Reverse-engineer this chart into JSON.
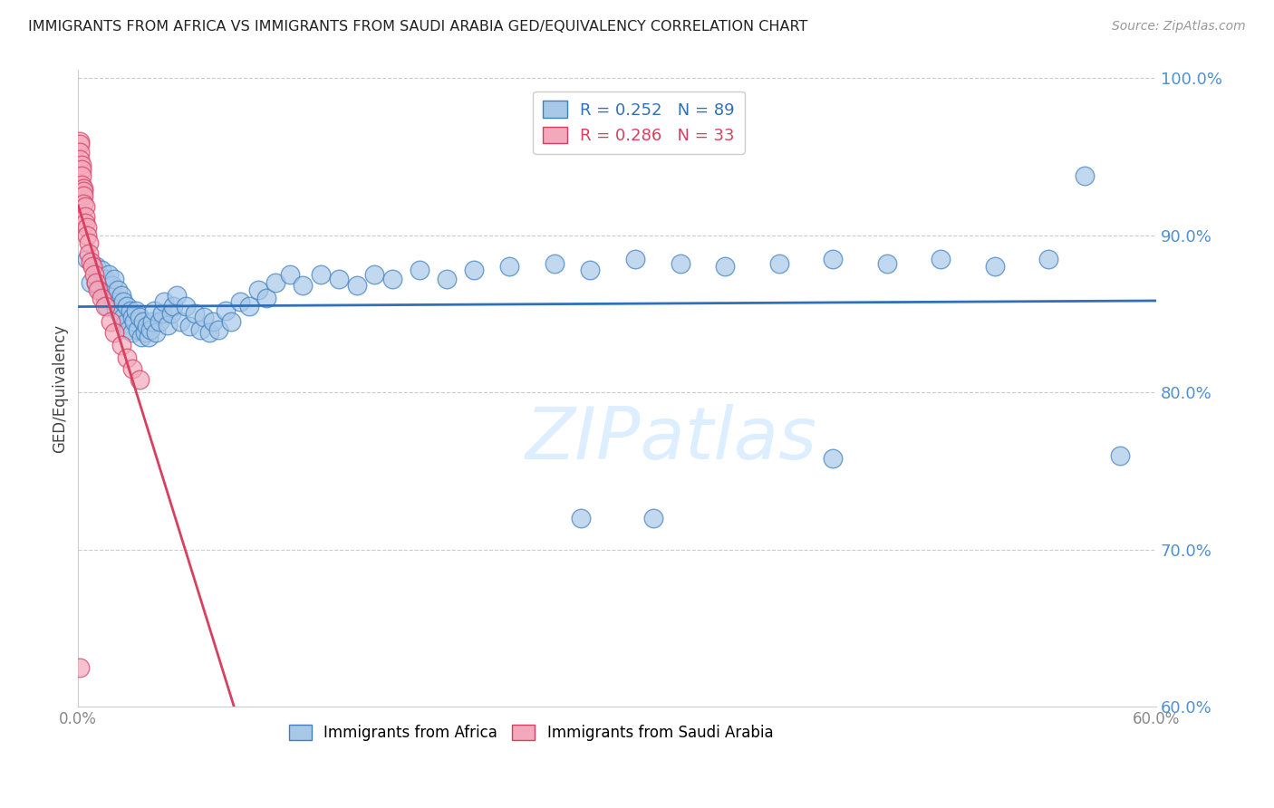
{
  "title": "IMMIGRANTS FROM AFRICA VS IMMIGRANTS FROM SAUDI ARABIA GED/EQUIVALENCY CORRELATION CHART",
  "source": "Source: ZipAtlas.com",
  "ylabel": "GED/Equivalency",
  "xlim": [
    0.0,
    0.6
  ],
  "ylim": [
    0.6,
    1.005
  ],
  "blue_color": "#a8c8e8",
  "pink_color": "#f4a8bc",
  "blue_edge_color": "#4080c0",
  "pink_edge_color": "#d04060",
  "blue_line_color": "#3070b8",
  "pink_line_color": "#d84060",
  "grid_color": "#cccccc",
  "right_tick_color": "#5090d0",
  "watermark_color": "#dceeff",
  "africa_x": [
    0.005,
    0.007,
    0.01,
    0.01,
    0.012,
    0.013,
    0.015,
    0.015,
    0.016,
    0.017,
    0.018,
    0.019,
    0.02,
    0.02,
    0.021,
    0.022,
    0.023,
    0.024,
    0.025,
    0.025,
    0.026,
    0.027,
    0.028,
    0.029,
    0.03,
    0.03,
    0.031,
    0.032,
    0.033,
    0.034,
    0.035,
    0.036,
    0.037,
    0.038,
    0.039,
    0.04,
    0.041,
    0.042,
    0.043,
    0.045,
    0.047,
    0.048,
    0.05,
    0.052,
    0.053,
    0.055,
    0.057,
    0.06,
    0.062,
    0.065,
    0.068,
    0.07,
    0.073,
    0.075,
    0.078,
    0.082,
    0.085,
    0.09,
    0.095,
    0.1,
    0.105,
    0.11,
    0.118,
    0.125,
    0.135,
    0.145,
    0.155,
    0.165,
    0.175,
    0.19,
    0.205,
    0.22,
    0.24,
    0.265,
    0.285,
    0.31,
    0.335,
    0.36,
    0.39,
    0.42,
    0.45,
    0.48,
    0.51,
    0.54,
    0.56,
    0.58,
    0.42,
    0.32,
    0.28
  ],
  "africa_y": [
    0.885,
    0.87,
    0.87,
    0.88,
    0.865,
    0.878,
    0.86,
    0.872,
    0.855,
    0.875,
    0.862,
    0.868,
    0.858,
    0.872,
    0.853,
    0.865,
    0.85,
    0.862,
    0.848,
    0.858,
    0.844,
    0.855,
    0.84,
    0.852,
    0.838,
    0.848,
    0.845,
    0.852,
    0.84,
    0.848,
    0.835,
    0.845,
    0.838,
    0.842,
    0.835,
    0.84,
    0.845,
    0.852,
    0.838,
    0.845,
    0.85,
    0.858,
    0.843,
    0.85,
    0.855,
    0.862,
    0.845,
    0.855,
    0.842,
    0.85,
    0.84,
    0.848,
    0.838,
    0.845,
    0.84,
    0.852,
    0.845,
    0.858,
    0.855,
    0.865,
    0.86,
    0.87,
    0.875,
    0.868,
    0.875,
    0.872,
    0.868,
    0.875,
    0.872,
    0.878,
    0.872,
    0.878,
    0.88,
    0.882,
    0.878,
    0.885,
    0.882,
    0.88,
    0.882,
    0.885,
    0.882,
    0.885,
    0.88,
    0.885,
    0.938,
    0.76,
    0.758,
    0.72,
    0.72
  ],
  "saudi_x": [
    0.001,
    0.001,
    0.001,
    0.001,
    0.002,
    0.002,
    0.002,
    0.002,
    0.003,
    0.003,
    0.003,
    0.003,
    0.004,
    0.004,
    0.004,
    0.005,
    0.005,
    0.006,
    0.006,
    0.007,
    0.008,
    0.009,
    0.01,
    0.011,
    0.013,
    0.015,
    0.018,
    0.02,
    0.024,
    0.027,
    0.03,
    0.034,
    0.001
  ],
  "saudi_y": [
    0.96,
    0.958,
    0.953,
    0.948,
    0.945,
    0.942,
    0.938,
    0.932,
    0.93,
    0.928,
    0.925,
    0.92,
    0.918,
    0.912,
    0.908,
    0.905,
    0.9,
    0.895,
    0.888,
    0.883,
    0.88,
    0.875,
    0.87,
    0.865,
    0.86,
    0.855,
    0.845,
    0.838,
    0.83,
    0.822,
    0.815,
    0.808,
    0.625
  ]
}
